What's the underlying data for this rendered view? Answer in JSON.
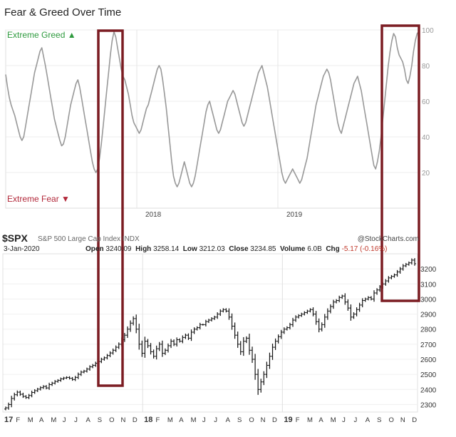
{
  "header": {
    "title": "Fear & Greed Over Time"
  },
  "fear_greed": {
    "top_label": "Extreme Greed",
    "bottom_label": "Extreme Fear",
    "greed_color": "#2e9a3e",
    "fear_color": "#b2283a",
    "line_color": "#999999"
  },
  "spx": {
    "symbol": "$SPX",
    "name": "S&P 500 Large Cap Index",
    "exchange": "INDX",
    "source": "@StockCharts.com",
    "date": "3-Jan-2020",
    "open_label": "Open",
    "open": "3240.09",
    "high_label": "High",
    "high": "3258.14",
    "low_label": "Low",
    "low": "3212.03",
    "close_label": "Close",
    "close": "3234.85",
    "volume_label": "Volume",
    "volume": "6.0B",
    "chg_label": "Chg",
    "chg": "-5.17 (-0.16%)"
  },
  "highlight_color": "#7b1c22",
  "chart_data": [
    {
      "type": "line",
      "title": "Fear & Greed Over Time",
      "y_range": [
        0,
        100
      ],
      "y_ticks": [
        "100",
        "80",
        "60",
        "40",
        "20"
      ],
      "x_labels": [
        "2018",
        "2019"
      ],
      "grid": true,
      "series": [
        {
          "values": [
            75,
            68,
            62,
            58,
            55,
            52,
            48,
            44,
            40,
            38,
            40,
            46,
            52,
            58,
            64,
            70,
            76,
            80,
            84,
            88,
            90,
            85,
            80,
            74,
            68,
            62,
            56,
            50,
            46,
            42,
            38,
            35,
            36,
            40,
            46,
            52,
            58,
            62,
            66,
            70,
            72,
            68,
            62,
            56,
            50,
            44,
            38,
            32,
            26,
            22,
            20,
            22,
            28,
            36,
            46,
            56,
            66,
            76,
            86,
            94,
            99,
            96,
            90,
            84,
            78,
            74,
            72,
            68,
            64,
            58,
            52,
            48,
            46,
            44,
            42,
            44,
            48,
            52,
            56,
            58,
            62,
            66,
            70,
            74,
            78,
            80,
            78,
            72,
            64,
            56,
            46,
            36,
            26,
            18,
            14,
            12,
            14,
            18,
            22,
            26,
            22,
            18,
            14,
            12,
            14,
            18,
            24,
            30,
            36,
            42,
            48,
            54,
            58,
            60,
            56,
            52,
            48,
            44,
            42,
            44,
            48,
            52,
            56,
            60,
            62,
            64,
            66,
            64,
            60,
            56,
            52,
            48,
            46,
            48,
            52,
            56,
            60,
            64,
            68,
            72,
            76,
            78,
            80,
            76,
            72,
            68,
            62,
            56,
            50,
            44,
            38,
            32,
            26,
            20,
            16,
            14,
            16,
            18,
            20,
            22,
            20,
            18,
            16,
            14,
            16,
            20,
            24,
            28,
            34,
            40,
            46,
            52,
            58,
            62,
            66,
            70,
            74,
            76,
            78,
            76,
            72,
            66,
            60,
            54,
            48,
            44,
            42,
            46,
            50,
            54,
            58,
            62,
            66,
            70,
            72,
            74,
            70,
            66,
            60,
            54,
            48,
            42,
            36,
            30,
            24,
            22,
            26,
            32,
            40,
            50,
            60,
            70,
            80,
            88,
            94,
            98,
            96,
            90,
            86,
            84,
            82,
            78,
            72,
            70,
            74,
            80,
            88,
            94,
            98,
            99
          ]
        }
      ]
    },
    {
      "type": "ohlc",
      "title": "S&P 500 Large Cap Index",
      "y_range": [
        2250,
        3300
      ],
      "y_ticks": [
        "3200",
        "3100",
        "3000",
        "2900",
        "2800",
        "2700",
        "2600",
        "2500",
        "2400",
        "2300"
      ],
      "x_labels": [
        "17",
        "F",
        "M",
        "A",
        "M",
        "J",
        "J",
        "A",
        "S",
        "O",
        "N",
        "D",
        "18",
        "F",
        "M",
        "A",
        "M",
        "J",
        "J",
        "A",
        "S",
        "O",
        "N",
        "D",
        "19",
        "F",
        "M",
        "A",
        "M",
        "J",
        "J",
        "A",
        "S",
        "O",
        "N",
        "D"
      ],
      "closes": [
        2278,
        2300,
        2340,
        2365,
        2382,
        2368,
        2354,
        2346,
        2360,
        2380,
        2392,
        2402,
        2412,
        2420,
        2410,
        2432,
        2442,
        2453,
        2460,
        2470,
        2476,
        2480,
        2474,
        2466,
        2480,
        2500,
        2515,
        2522,
        2535,
        2550,
        2560,
        2574,
        2585,
        2600,
        2610,
        2625,
        2642,
        2660,
        2680,
        2700,
        2730,
        2760,
        2800,
        2840,
        2870,
        2800,
        2700,
        2640,
        2720,
        2690,
        2650,
        2620,
        2670,
        2700,
        2640,
        2660,
        2690,
        2720,
        2700,
        2730,
        2720,
        2745,
        2760,
        2740,
        2780,
        2800,
        2810,
        2830,
        2830,
        2850,
        2860,
        2870,
        2880,
        2900,
        2920,
        2930,
        2920,
        2880,
        2820,
        2760,
        2700,
        2650,
        2720,
        2740,
        2660,
        2600,
        2500,
        2400,
        2450,
        2500,
        2560,
        2620,
        2680,
        2720,
        2750,
        2780,
        2800,
        2810,
        2830,
        2860,
        2880,
        2890,
        2900,
        2910,
        2920,
        2930,
        2900,
        2850,
        2800,
        2830,
        2880,
        2920,
        2950,
        2980,
        2990,
        3010,
        3020,
        2980,
        2940,
        2880,
        2900,
        2930,
        2960,
        2990,
        3000,
        3010,
        3000,
        3040,
        3060,
        3080,
        3100,
        3120,
        3140,
        3150,
        3160,
        3180,
        3200,
        3220,
        3230,
        3240,
        3258,
        3234
      ]
    }
  ]
}
